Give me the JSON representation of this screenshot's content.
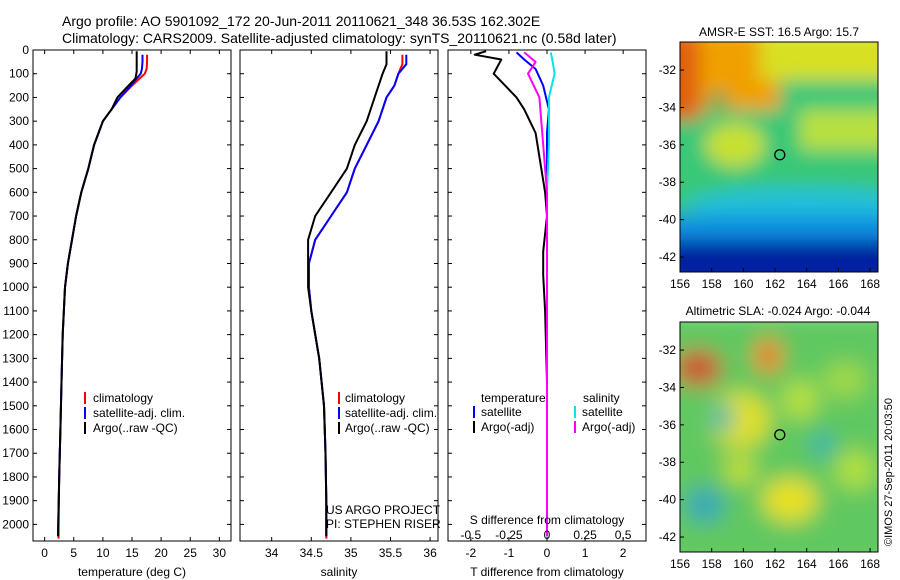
{
  "header": {
    "title1": "Argo profile: AO 5901092_172 20-Jun-2011 20110621_348 36.53S 162.302E",
    "title2": "Climatology: CARS2009. Satellite-adjusted climatology: synTS_20110621.nc (0.58d later)"
  },
  "side_text": "©IMOS 27-Sep-2011 20:03:50",
  "project_text": [
    "US ARGO PROJECT",
    "PI: STEPHEN RISER"
  ],
  "colors": {
    "climatology": "#ff0000",
    "satellite": "#0000ff",
    "argo": "#000000",
    "sal_satellite": "#00e5e5",
    "sal_argo": "#ff00ff",
    "marker": "#000000"
  },
  "chart_data": [
    {
      "id": "temperature",
      "type": "line",
      "xlabel": "temperature (deg C)",
      "ylabel": "",
      "xlim": [
        -2,
        32
      ],
      "ylim": [
        2070,
        0
      ],
      "xticks": [
        0,
        5,
        10,
        15,
        20,
        25,
        30
      ],
      "yticks": [
        0,
        100,
        200,
        300,
        400,
        500,
        600,
        700,
        800,
        900,
        1000,
        1100,
        1200,
        1300,
        1400,
        1500,
        1600,
        1700,
        1800,
        1900,
        2000
      ],
      "legend": {
        "position": "middle-left",
        "entries": [
          "climatology",
          "satellite-adj. clim.",
          "Argo(..raw -QC)"
        ]
      },
      "series": [
        {
          "name": "climatology",
          "color": "#ff0000",
          "x": [
            17.6,
            17.6,
            17.5,
            17.2,
            15.0,
            13.0,
            11.5,
            10.0,
            8.5,
            7.5,
            6.3,
            5.4,
            4.7,
            4.0,
            3.5,
            3.1,
            2.9,
            2.7,
            2.5,
            2.4,
            2.4
          ],
          "y": [
            20,
            50,
            80,
            100,
            150,
            200,
            250,
            300,
            400,
            500,
            600,
            700,
            800,
            900,
            1000,
            1200,
            1400,
            1600,
            1800,
            2000,
            2060
          ]
        },
        {
          "name": "satellite-adj. clim.",
          "color": "#0000ff",
          "x": [
            16.8,
            16.8,
            16.7,
            16.5,
            14.8,
            13.0,
            11.5,
            10.0,
            8.5,
            7.5,
            6.3,
            5.4,
            4.7,
            4.0,
            3.5,
            3.1,
            2.9,
            2.7,
            2.5,
            2.3
          ],
          "y": [
            20,
            50,
            80,
            100,
            150,
            200,
            250,
            300,
            400,
            500,
            600,
            700,
            800,
            900,
            1000,
            1200,
            1400,
            1600,
            1800,
            2050
          ]
        },
        {
          "name": "Argo(..raw -QC)",
          "color": "#000000",
          "x": [
            15.8,
            15.8,
            15.8,
            15.6,
            14.0,
            12.5,
            11.5,
            10.0,
            8.5,
            7.5,
            6.3,
            5.4,
            4.7,
            4.0,
            3.5,
            3.1,
            2.9,
            2.7,
            2.5,
            2.3
          ],
          "y": [
            5,
            50,
            90,
            120,
            160,
            200,
            250,
            300,
            400,
            500,
            600,
            700,
            800,
            900,
            1000,
            1200,
            1400,
            1600,
            1800,
            2050
          ]
        }
      ]
    },
    {
      "id": "salinity",
      "type": "line",
      "xlabel": "salinity",
      "ylabel": "",
      "xlim": [
        33.6,
        36.1
      ],
      "ylim": [
        2070,
        0
      ],
      "xticks": [
        34,
        34.5,
        35,
        35.5,
        36
      ],
      "legend": {
        "position": "middle-right",
        "entries": [
          "climatology",
          "satellite-adj. clim.",
          "Argo(..raw -QC)"
        ]
      },
      "series": [
        {
          "name": "climatology",
          "color": "#ff0000",
          "x": [
            35.65,
            35.65,
            35.6,
            35.55,
            35.45,
            35.35,
            35.2,
            35.05,
            34.95,
            34.75,
            34.55,
            34.47,
            34.47,
            34.5,
            34.6,
            34.66,
            34.68,
            34.69,
            34.69
          ],
          "y": [
            20,
            60,
            100,
            150,
            200,
            300,
            400,
            500,
            600,
            700,
            800,
            900,
            1000,
            1100,
            1300,
            1500,
            1700,
            1900,
            2060
          ]
        },
        {
          "name": "satellite-adj. clim.",
          "color": "#0000ff",
          "x": [
            35.7,
            35.7,
            35.6,
            35.55,
            35.45,
            35.35,
            35.2,
            35.05,
            34.95,
            34.75,
            34.55,
            34.47,
            34.47,
            34.5,
            34.6,
            34.66,
            34.68,
            34.69,
            34.69
          ],
          "y": [
            20,
            60,
            100,
            150,
            200,
            300,
            400,
            500,
            600,
            700,
            800,
            900,
            1000,
            1100,
            1300,
            1500,
            1700,
            1900,
            2050
          ]
        },
        {
          "name": "Argo(..raw -QC)",
          "color": "#000000",
          "x": [
            35.45,
            35.45,
            35.4,
            35.35,
            35.3,
            35.2,
            35.05,
            34.95,
            34.75,
            34.55,
            34.46,
            34.46,
            34.5,
            34.6,
            34.66,
            34.68,
            34.69,
            34.69
          ],
          "y": [
            5,
            60,
            100,
            150,
            200,
            300,
            400,
            500,
            600,
            700,
            800,
            1000,
            1100,
            1300,
            1500,
            1700,
            1900,
            2050
          ]
        }
      ]
    },
    {
      "id": "difference",
      "type": "line",
      "xlabel": "T difference from climatology",
      "xlabel_top": "S difference from climatology",
      "xlim": [
        -2.6,
        2.6
      ],
      "ylim": [
        2070,
        0
      ],
      "xticks": [
        -2,
        -1,
        0,
        1,
        2
      ],
      "xticks_s": [
        -0.5,
        -0.25,
        0,
        0.25,
        0.5
      ],
      "legend": {
        "position": "lower-middle",
        "headers": [
          "temperature",
          "salinity"
        ],
        "entries": [
          "satellite",
          "Argo(-adj)",
          "satellite",
          "Argo(-adj)"
        ]
      },
      "series": [
        {
          "name": "satellite",
          "group": "temperature",
          "color": "#0000ff",
          "x": [
            -0.8,
            -0.6,
            -0.3,
            -0.1,
            0.05,
            0.0,
            0.0,
            0.0,
            0.0,
            0.0,
            0.0,
            0.0
          ],
          "y": [
            10,
            40,
            80,
            150,
            250,
            350,
            500,
            700,
            1000,
            1400,
            1800,
            2050
          ]
        },
        {
          "name": "Argo(-adj)",
          "group": "temperature",
          "color": "#000000",
          "x": [
            -1.6,
            -1.9,
            -1.2,
            -1.4,
            -0.8,
            -0.6,
            -0.3,
            -0.2,
            -0.1,
            -0.05,
            0.0,
            -0.1,
            -0.1,
            -0.05,
            0.0,
            0.0,
            0.0
          ],
          "y": [
            5,
            20,
            40,
            100,
            200,
            250,
            350,
            450,
            550,
            600,
            700,
            850,
            950,
            1100,
            1400,
            1800,
            2050
          ]
        },
        {
          "name": "satellite",
          "group": "salinity",
          "color": "#00e5e5",
          "x": [
            0.1,
            0.15,
            0.2,
            0.05,
            0.05,
            0.0,
            0.0,
            0.0,
            0.0,
            0.0
          ],
          "y": [
            10,
            50,
            100,
            200,
            400,
            600,
            900,
            1300,
            1700,
            2050
          ]
        },
        {
          "name": "Argo(-adj)",
          "group": "salinity",
          "color": "#ff00ff",
          "x": [
            -0.6,
            -0.3,
            -0.5,
            -0.2,
            -0.1,
            0.0,
            0.0,
            0.0,
            0.0,
            0.0
          ],
          "y": [
            10,
            50,
            100,
            200,
            400,
            600,
            900,
            1300,
            1700,
            2050
          ]
        }
      ]
    },
    {
      "id": "sst-map",
      "type": "heatmap",
      "title": "AMSR-E SST: 16.5 Argo: 15.7",
      "xlim": [
        156,
        168.5
      ],
      "ylim": [
        -42.8,
        -30.5
      ],
      "xticks": [
        156,
        158,
        160,
        162,
        164,
        166,
        168
      ],
      "yticks": [
        -32,
        -34,
        -36,
        -38,
        -40,
        -42
      ],
      "marker": {
        "lon": 162.3,
        "lat": -36.53
      }
    },
    {
      "id": "sla-map",
      "type": "heatmap",
      "title": "Altimetric SLA: -0.024 Argo: -0.044",
      "xlim": [
        156,
        168.5
      ],
      "ylim": [
        -42.8,
        -30.5
      ],
      "xticks": [
        156,
        158,
        160,
        162,
        164,
        166,
        168
      ],
      "yticks": [
        -32,
        -34,
        -36,
        -38,
        -40,
        -42
      ],
      "marker": {
        "lon": 162.3,
        "lat": -36.53
      }
    }
  ]
}
